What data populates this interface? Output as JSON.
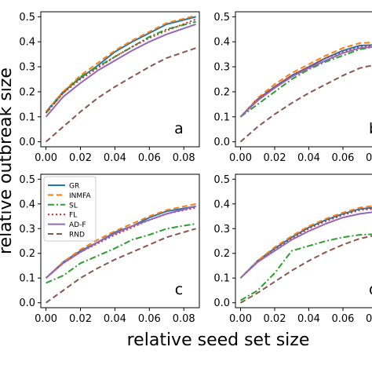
{
  "chart_data": {
    "type": "line",
    "xlabel": "relative seed set size",
    "ylabel": "relative outbreak size",
    "xticks": [
      "0.00",
      "0.02",
      "0.04",
      "0.06",
      "0.08"
    ],
    "yticks": [
      "0.0",
      "0.1",
      "0.2",
      "0.3",
      "0.4",
      "0.5"
    ],
    "xlim": [
      -0.003,
      0.089
    ],
    "ylim": [
      -0.02,
      0.52
    ],
    "legend": [
      {
        "name": "GR",
        "color": "#1f77b4",
        "style": "solid"
      },
      {
        "name": "INMFA",
        "color": "#ff7f0e",
        "style": "dashed"
      },
      {
        "name": "SL",
        "color": "#2ca02c",
        "style": "dashdot"
      },
      {
        "name": "FL",
        "color": "#d62728",
        "style": "dotted"
      },
      {
        "name": "AD-F",
        "color": "#9467bd",
        "style": "solid"
      },
      {
        "name": "RND",
        "color": "#8c564b",
        "style": "dashed"
      }
    ],
    "x": [
      0.0,
      0.01,
      0.02,
      0.03,
      0.04,
      0.05,
      0.06,
      0.07,
      0.087
    ],
    "panels": [
      {
        "label": "a",
        "series": [
          {
            "name": "GR",
            "values": [
              0.12,
              0.2,
              0.255,
              0.305,
              0.36,
              0.4,
              0.435,
              0.47,
              0.5
            ]
          },
          {
            "name": "INMFA",
            "values": [
              0.12,
              0.2,
              0.265,
              0.315,
              0.365,
              0.405,
              0.44,
              0.475,
              0.505
            ]
          },
          {
            "name": "SL",
            "values": [
              0.115,
              0.195,
              0.26,
              0.3,
              0.34,
              0.38,
              0.42,
              0.45,
              0.48
            ]
          },
          {
            "name": "FL",
            "values": [
              0.115,
              0.195,
              0.25,
              0.295,
              0.34,
              0.38,
              0.415,
              0.445,
              0.49
            ]
          },
          {
            "name": "AD-F",
            "values": [
              0.1,
              0.18,
              0.235,
              0.285,
              0.325,
              0.365,
              0.4,
              0.43,
              0.47
            ]
          },
          {
            "name": "RND",
            "values": [
              0.0,
              0.06,
              0.12,
              0.175,
              0.22,
              0.26,
              0.3,
              0.335,
              0.375
            ]
          }
        ]
      },
      {
        "label": "b",
        "series": [
          {
            "name": "GR",
            "values": [
              0.1,
              0.17,
              0.22,
              0.265,
              0.3,
              0.335,
              0.365,
              0.385,
              0.39
            ]
          },
          {
            "name": "INMFA",
            "values": [
              0.1,
              0.175,
              0.23,
              0.275,
              0.31,
              0.345,
              0.375,
              0.395,
              0.4
            ]
          },
          {
            "name": "SL",
            "values": [
              0.1,
              0.15,
              0.2,
              0.25,
              0.29,
              0.32,
              0.345,
              0.37,
              0.39
            ]
          },
          {
            "name": "FL",
            "values": [
              0.1,
              0.17,
              0.22,
              0.265,
              0.3,
              0.335,
              0.36,
              0.38,
              0.39
            ]
          },
          {
            "name": "AD-F",
            "values": [
              0.1,
              0.165,
              0.215,
              0.26,
              0.295,
              0.325,
              0.355,
              0.375,
              0.385
            ]
          },
          {
            "name": "RND",
            "values": [
              0.0,
              0.06,
              0.11,
              0.155,
              0.195,
              0.23,
              0.265,
              0.295,
              0.32
            ]
          }
        ]
      },
      {
        "label": "c",
        "series": [
          {
            "name": "GR",
            "values": [
              0.1,
              0.165,
              0.21,
              0.245,
              0.285,
              0.31,
              0.345,
              0.37,
              0.39
            ]
          },
          {
            "name": "INMFA",
            "values": [
              0.1,
              0.165,
              0.215,
              0.255,
              0.29,
              0.32,
              0.35,
              0.375,
              0.4
            ]
          },
          {
            "name": "SL",
            "values": [
              0.08,
              0.11,
              0.16,
              0.19,
              0.22,
              0.255,
              0.275,
              0.3,
              0.32
            ]
          },
          {
            "name": "FL",
            "values": [
              0.1,
              0.16,
              0.205,
              0.24,
              0.275,
              0.305,
              0.335,
              0.36,
              0.385
            ]
          },
          {
            "name": "AD-F",
            "values": [
              0.1,
              0.16,
              0.205,
              0.245,
              0.28,
              0.31,
              0.335,
              0.36,
              0.39
            ]
          },
          {
            "name": "RND",
            "values": [
              0.0,
              0.05,
              0.1,
              0.14,
              0.175,
              0.205,
              0.235,
              0.265,
              0.3
            ]
          }
        ]
      },
      {
        "label": "d",
        "series": [
          {
            "name": "GR",
            "values": [
              0.1,
              0.17,
              0.22,
              0.265,
              0.305,
              0.335,
              0.36,
              0.38,
              0.39
            ]
          },
          {
            "name": "INMFA",
            "values": [
              0.1,
              0.17,
              0.225,
              0.27,
              0.31,
              0.34,
              0.365,
              0.385,
              0.4
            ]
          },
          {
            "name": "SL",
            "values": [
              0.01,
              0.05,
              0.12,
              0.21,
              0.23,
              0.25,
              0.265,
              0.275,
              0.28
            ]
          },
          {
            "name": "FL",
            "values": [
              0.1,
              0.165,
              0.215,
              0.26,
              0.3,
              0.33,
              0.355,
              0.375,
              0.385
            ]
          },
          {
            "name": "AD-F",
            "values": [
              0.1,
              0.165,
              0.21,
              0.255,
              0.29,
              0.32,
              0.345,
              0.36,
              0.375
            ]
          },
          {
            "name": "RND",
            "values": [
              0.0,
              0.04,
              0.085,
              0.13,
              0.17,
              0.205,
              0.235,
              0.26,
              0.285
            ]
          }
        ]
      }
    ]
  }
}
